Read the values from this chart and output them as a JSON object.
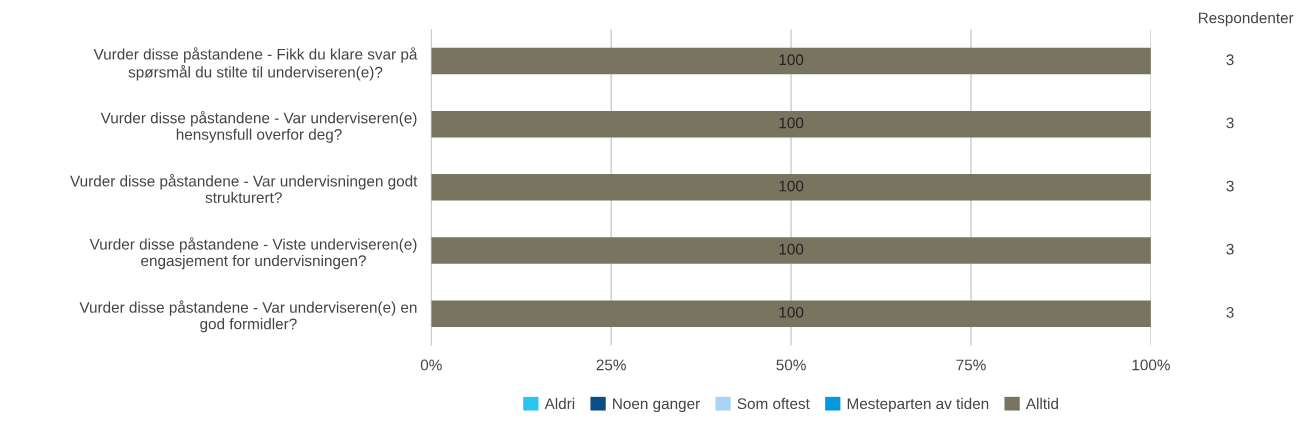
{
  "chart_data": {
    "type": "bar",
    "orientation": "horizontal",
    "categories": [
      "Vurder disse påstandene - Fikk du klare svar på\nspørsmål du stilte til underviseren(e)?",
      "Vurder disse påstandene - Var underviseren(e)\nhensynsfull overfor deg?",
      "Vurder disse påstandene - Var undervisningen godt\nstrukturert?",
      "Vurder disse påstandene - Viste underviseren(e)\nengasjement for undervisningen?",
      "Vurder disse påstandene - Var underviseren(e) en\ngod formidler?"
    ],
    "series": [
      {
        "name": "Aldri",
        "color": "#29c4f2",
        "values": [
          0,
          0,
          0,
          0,
          0
        ]
      },
      {
        "name": "Noen ganger",
        "color": "#0b4d85",
        "values": [
          0,
          0,
          0,
          0,
          0
        ]
      },
      {
        "name": "Som oftest",
        "color": "#a8d3f5",
        "values": [
          0,
          0,
          0,
          0,
          0
        ]
      },
      {
        "name": "Mesteparten av tiden",
        "color": "#0599dc",
        "values": [
          0,
          0,
          0,
          0,
          0
        ]
      },
      {
        "name": "Alltid",
        "color": "#79745f",
        "values": [
          100,
          100,
          100,
          100,
          100
        ],
        "value_labels": [
          "100",
          "100",
          "100",
          "100",
          "100"
        ]
      }
    ],
    "xlim": [
      0,
      100
    ],
    "xticks": [
      {
        "value": 0,
        "label": "0%"
      },
      {
        "value": 25,
        "label": "25%"
      },
      {
        "value": 50,
        "label": "50%"
      },
      {
        "value": 75,
        "label": "75%"
      },
      {
        "value": 100,
        "label": "100%"
      }
    ],
    "y2label": "Respondenter",
    "annotations": [
      "3",
      "3",
      "3",
      "3",
      "3"
    ],
    "grid": "x",
    "legend": "bottom"
  }
}
